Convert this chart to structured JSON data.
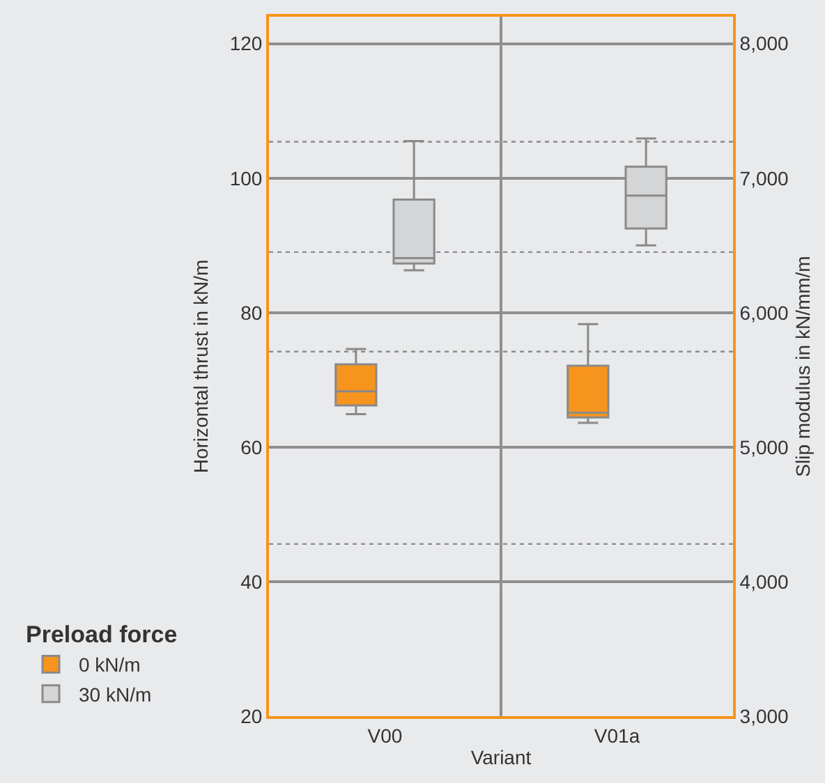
{
  "chart_data": {
    "type": "box",
    "xlabel": "Variant",
    "ylabel": "Horizontal thrust in kN/m",
    "y2label": "Slip modulus in kN/mm/m",
    "legend_title": "Preload force",
    "categories": [
      "V00",
      "V01a"
    ],
    "series": [
      {
        "name": "0 kN/m",
        "color": "#f7941d",
        "boxes": [
          {
            "low": 64.9,
            "q1": 66.2,
            "median": 68.3,
            "q3": 72.3,
            "high": 74.6
          },
          {
            "low": 63.6,
            "q1": 64.4,
            "median": 65.1,
            "q3": 72.1,
            "high": 78.3
          }
        ]
      },
      {
        "name": "30 kN/m",
        "color": "#d4d5d7",
        "boxes": [
          {
            "low": 86.3,
            "q1": 87.3,
            "median": 88.1,
            "q3": 96.8,
            "high": 105.5
          },
          {
            "low": 90.0,
            "q1": 92.5,
            "median": 97.4,
            "q3": 101.7,
            "high": 105.9
          }
        ]
      }
    ],
    "ylim": [
      20,
      124
    ],
    "yticks": [
      20,
      40,
      60,
      80,
      100,
      120
    ],
    "y2lim": [
      3000,
      8200
    ],
    "y2ticks": [
      {
        "value": 3000,
        "label": "3,000"
      },
      {
        "value": 4000,
        "label": "4,000"
      },
      {
        "value": 5000,
        "label": "5,000"
      },
      {
        "value": 6000,
        "label": "6,000"
      },
      {
        "value": 7000,
        "label": "7,000"
      },
      {
        "value": 8000,
        "label": "8,000"
      }
    ],
    "ref_lines": [
      {
        "axis": "y",
        "value": 105.4,
        "line_style": "dotted",
        "color": "#8c8c8c"
      },
      {
        "axis": "y",
        "value": 89,
        "line_style": "dotted",
        "color": "#8c8c8c"
      },
      {
        "axis": "y",
        "value": 74.2,
        "line_style": "dotted",
        "color": "#8c8c8c"
      },
      {
        "axis": "y",
        "value": 45.6,
        "line_style": "dotted",
        "color": "#8c8c8c"
      }
    ],
    "grid": true,
    "legend": "bottom left"
  }
}
